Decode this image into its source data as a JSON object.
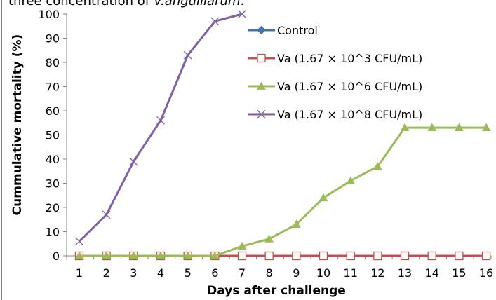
{
  "caption": {
    "prefix": "three concentration of ",
    "italic": "V.anguillarum",
    "suffix": "."
  },
  "chart_data": {
    "type": "line",
    "xlabel": "Days after challenge",
    "ylabel": "Cummulative mortality (%)",
    "ylim": [
      0,
      100
    ],
    "yticks": [
      0,
      10,
      20,
      30,
      40,
      50,
      60,
      70,
      80,
      90,
      100
    ],
    "categories": [
      "1",
      "2",
      "3",
      "4",
      "5",
      "6",
      "7",
      "8",
      "9",
      "10",
      "11",
      "12",
      "13",
      "14",
      "15",
      "16"
    ],
    "grid": false,
    "legend_position": "right",
    "series": [
      {
        "name": "Control",
        "color": "#4572A7",
        "marker": "diamond",
        "x": [
          1,
          2,
          3,
          4,
          5,
          6,
          7,
          8,
          9,
          10,
          11,
          12,
          13,
          14,
          15,
          16
        ],
        "values": [
          0,
          0,
          0,
          0,
          0,
          0,
          0,
          0,
          0,
          0,
          0,
          0,
          0,
          0,
          0,
          0
        ]
      },
      {
        "name": "Va (1.67 × 10^3 CFU/mL)",
        "color": "#C0504D",
        "marker": "square-open",
        "x": [
          1,
          2,
          3,
          4,
          5,
          6,
          7,
          8,
          9,
          10,
          11,
          12,
          13,
          14,
          15,
          16
        ],
        "values": [
          0,
          0,
          0,
          0,
          0,
          0,
          0,
          0,
          0,
          0,
          0,
          0,
          0,
          0,
          0,
          0
        ]
      },
      {
        "name": "Va (1.67 × 10^6 CFU/mL)",
        "color": "#9BBB59",
        "marker": "triangle",
        "x": [
          1,
          2,
          3,
          4,
          5,
          6,
          7,
          8,
          9,
          10,
          11,
          12,
          13,
          14,
          15,
          16
        ],
        "values": [
          0,
          0,
          0,
          0,
          0,
          0,
          4,
          7,
          13,
          24,
          31,
          37,
          53,
          53,
          53,
          53
        ]
      },
      {
        "name": "Va (1.67 × 10^8 CFU/mL)",
        "color": "#7F60A0",
        "marker": "x",
        "x": [
          1,
          2,
          3,
          4,
          5,
          6,
          7
        ],
        "values": [
          6,
          17,
          39,
          56,
          83,
          97,
          100
        ]
      }
    ]
  }
}
